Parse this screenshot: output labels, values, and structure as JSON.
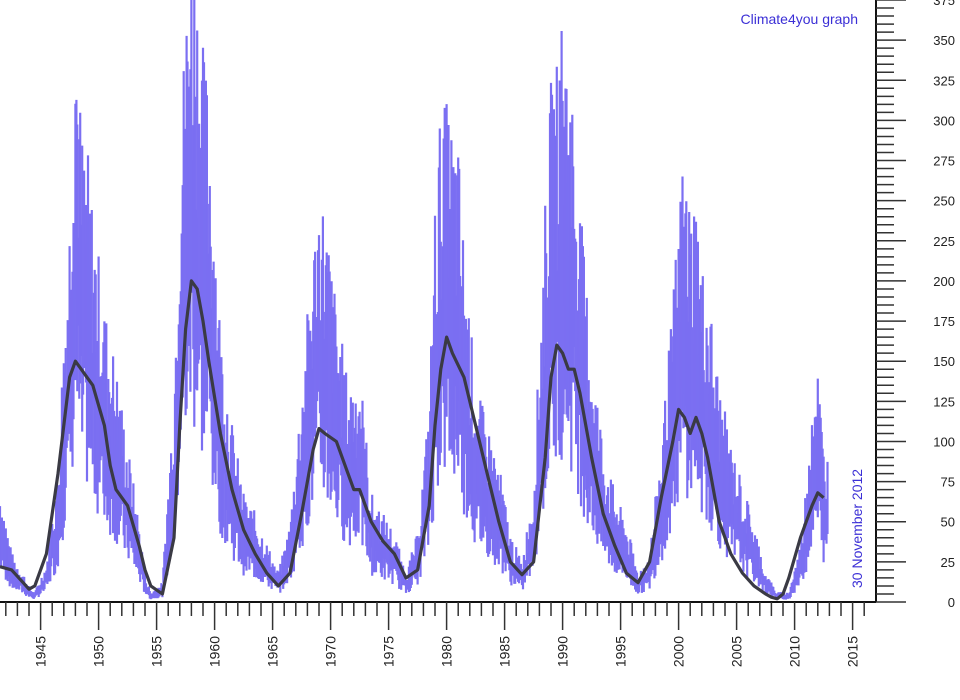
{
  "chart_data": {
    "type": "line",
    "title": "",
    "credit": "Climate4you graph",
    "date_label": "30 November 2012",
    "xlabel": "",
    "ylabel": "",
    "xlim": [
      1941.5,
      2016.5
    ],
    "ylim": [
      0,
      375
    ],
    "x_ticks": [
      1945,
      1950,
      1955,
      1960,
      1965,
      1970,
      1975,
      1980,
      1985,
      1990,
      1995,
      2000,
      2005,
      2010,
      2015
    ],
    "y_ticks": [
      0,
      25,
      50,
      75,
      100,
      125,
      150,
      175,
      200,
      225,
      250,
      275,
      300,
      325,
      350,
      375
    ],
    "grid": false,
    "series": [
      {
        "role": "monthly",
        "color": "#7b6ff2",
        "x": [
          1941.5,
          1942.5,
          1943.5,
          1944.0,
          1944.5,
          1945.5,
          1946.5,
          1947.0,
          1947.5,
          1948.0,
          1948.5,
          1949.0,
          1949.5,
          1950.5,
          1951.5,
          1952.5,
          1953.5,
          1954.0,
          1954.5,
          1955.5,
          1956.5,
          1957.0,
          1957.5,
          1958.0,
          1958.5,
          1959.0,
          1959.5,
          1960.5,
          1961.5,
          1962.5,
          1963.5,
          1964.5,
          1965.5,
          1966.5,
          1967.5,
          1968.5,
          1969.0,
          1969.5,
          1970.5,
          1971.5,
          1972.5,
          1973.5,
          1974.5,
          1975.5,
          1976.5,
          1977.5,
          1978.5,
          1979.0,
          1979.5,
          1980.0,
          1980.5,
          1981.0,
          1981.5,
          1982.5,
          1983.5,
          1984.5,
          1985.5,
          1986.5,
          1987.5,
          1988.5,
          1989.0,
          1989.5,
          1990.0,
          1990.5,
          1991.0,
          1991.5,
          1992.5,
          1993.5,
          1994.5,
          1995.5,
          1996.5,
          1997.5,
          1998.5,
          1999.5,
          2000.0,
          2000.5,
          2001.0,
          2001.5,
          2002.0,
          2002.5,
          2003.5,
          2004.5,
          2005.5,
          2006.5,
          2007.5,
          2008.5,
          2009.5,
          2010.5,
          2011.0,
          2011.5,
          2012.0,
          2012.5,
          2012.9
        ],
        "y": [
          60,
          25,
          15,
          8,
          5,
          20,
          70,
          140,
          200,
          320,
          240,
          230,
          200,
          150,
          120,
          80,
          40,
          15,
          5,
          10,
          110,
          230,
          300,
          355,
          320,
          280,
          260,
          140,
          90,
          55,
          45,
          30,
          15,
          40,
          110,
          180,
          210,
          200,
          150,
          110,
          120,
          55,
          45,
          35,
          15,
          35,
          100,
          200,
          250,
          250,
          240,
          230,
          180,
          110,
          90,
          70,
          35,
          20,
          60,
          200,
          260,
          270,
          300,
          280,
          250,
          200,
          130,
          80,
          55,
          40,
          15,
          25,
          80,
          150,
          200,
          230,
          200,
          210,
          170,
          160,
          110,
          80,
          60,
          40,
          15,
          5,
          5,
          30,
          60,
          110,
          120,
          80,
          75
        ]
      },
      {
        "role": "smoothed",
        "color": "#3a3a44",
        "x": [
          1941.5,
          1942.5,
          1943.5,
          1944.0,
          1944.5,
          1945.5,
          1946.5,
          1947.5,
          1948.0,
          1948.5,
          1949.0,
          1949.5,
          1950.5,
          1951.0,
          1951.5,
          1952.5,
          1953.5,
          1954.0,
          1954.5,
          1955.5,
          1956.5,
          1957.0,
          1957.5,
          1958.0,
          1958.5,
          1959.0,
          1959.5,
          1960.5,
          1961.5,
          1962.5,
          1963.5,
          1964.5,
          1965.5,
          1966.5,
          1967.5,
          1968.5,
          1969.0,
          1969.5,
          1970.5,
          1971.5,
          1972.0,
          1972.5,
          1973.5,
          1974.5,
          1975.5,
          1976.5,
          1977.5,
          1978.5,
          1979.0,
          1979.5,
          1980.0,
          1980.5,
          1981.5,
          1982.5,
          1983.5,
          1984.5,
          1985.5,
          1986.5,
          1987.5,
          1988.5,
          1989.0,
          1989.5,
          1990.0,
          1990.5,
          1991.0,
          1991.5,
          1992.5,
          1993.5,
          1994.5,
          1995.5,
          1996.5,
          1997.5,
          1998.5,
          1999.5,
          2000.0,
          2000.5,
          2001.0,
          2001.5,
          2002.0,
          2002.5,
          2003.5,
          2004.5,
          2005.5,
          2006.5,
          2007.5,
          2008.0,
          2008.5,
          2009.0,
          2009.5,
          2010.5,
          2011.5,
          2012.0,
          2012.5
        ],
        "y": [
          22,
          20,
          12,
          8,
          10,
          30,
          80,
          140,
          150,
          145,
          140,
          135,
          110,
          85,
          70,
          60,
          35,
          20,
          10,
          5,
          40,
          110,
          170,
          200,
          195,
          175,
          150,
          105,
          70,
          45,
          30,
          18,
          10,
          18,
          55,
          95,
          108,
          105,
          100,
          80,
          70,
          70,
          50,
          38,
          30,
          15,
          20,
          60,
          110,
          145,
          165,
          155,
          140,
          110,
          80,
          50,
          25,
          17,
          25,
          90,
          140,
          160,
          155,
          145,
          145,
          130,
          90,
          55,
          35,
          18,
          12,
          25,
          65,
          100,
          120,
          115,
          105,
          115,
          105,
          90,
          50,
          30,
          18,
          10,
          5,
          3,
          2,
          5,
          15,
          40,
          60,
          68,
          65
        ]
      }
    ]
  }
}
